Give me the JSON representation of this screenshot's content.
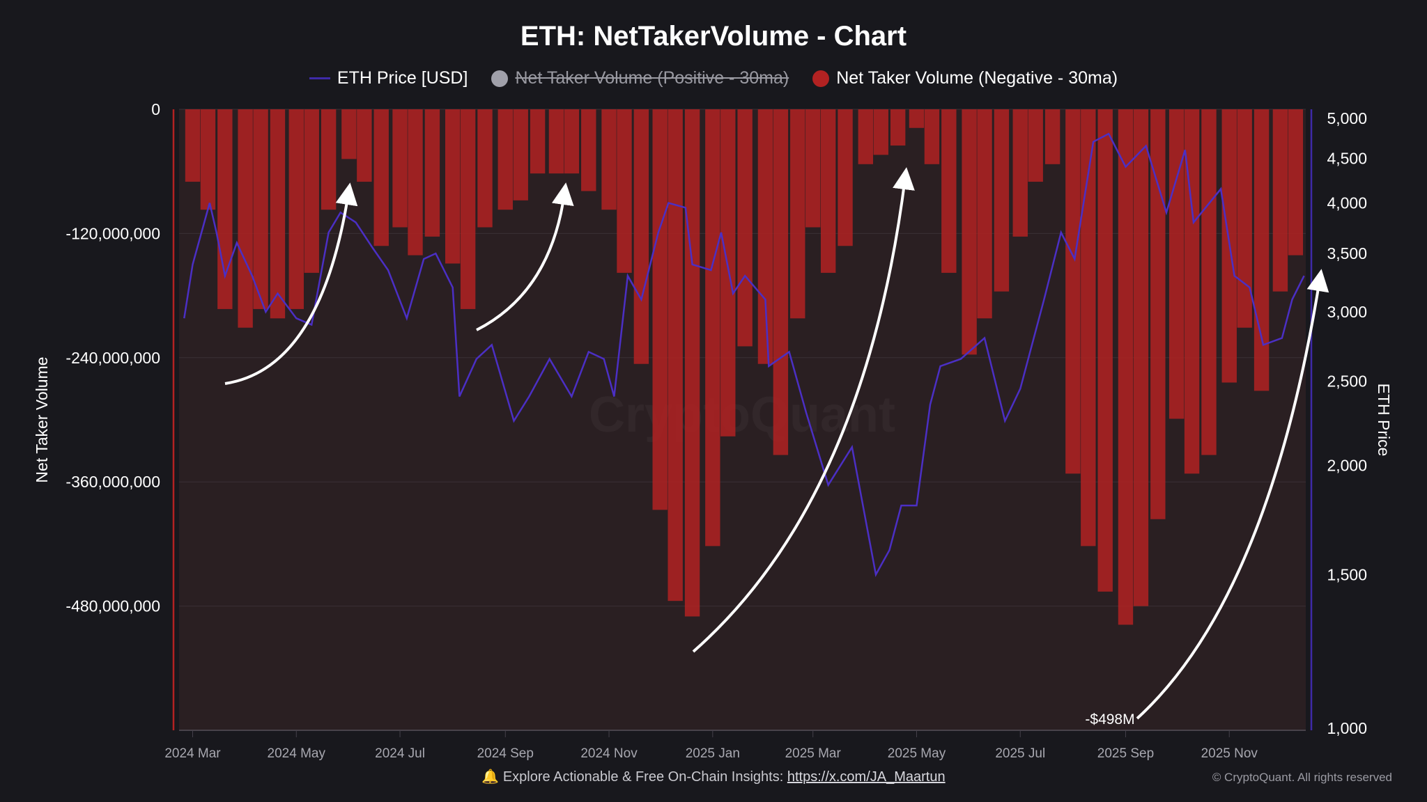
{
  "title": "ETH: NetTakerVolume - Chart",
  "legend": [
    {
      "label": "ETH Price [USD]",
      "color": "#3e2aa8",
      "marker": "line",
      "enabled": true
    },
    {
      "label": "Net Taker Volume (Positive - 30ma)",
      "color": "#a0a0aa",
      "marker": "dot",
      "enabled": false
    },
    {
      "label": "Net Taker Volume (Negative - 30ma)",
      "color": "#b22222",
      "marker": "dot",
      "enabled": true
    }
  ],
  "footer": {
    "bell_icon": "bell-icon",
    "text": "Explore Actionable & Free On-Chain Insights: ",
    "link": "https://x.com/JA_Maartun"
  },
  "copyright": "© CryptoQuant. All rights reserved",
  "watermark": "CryptoQuant",
  "chart_data": {
    "type": "bar+line",
    "title": "ETH: NetTakerVolume - Chart",
    "ylabel_left": "Net Taker Volume",
    "ylabel_right": "ETH Price",
    "ylim_left": [
      -600000000,
      0
    ],
    "ylim_right": [
      1000,
      5000
    ],
    "right_scale": "log",
    "grid": true,
    "legend_placement": "top",
    "left_ticks": [
      "0",
      "-120,000,000",
      "-240,000,000",
      "-360,000,000",
      "-480,000,000"
    ],
    "left_tick_values": [
      0,
      -120000000,
      -240000000,
      -360000000,
      -480000000
    ],
    "right_ticks": [
      "5,000",
      "4,500",
      "4,000",
      "3,500",
      "3,000",
      "2,500",
      "2,000",
      "1,500",
      "1,000"
    ],
    "right_tick_values": [
      5000,
      4500,
      4000,
      3500,
      3000,
      2500,
      2000,
      1500,
      1000
    ],
    "x_ticks": [
      "2024 Mar",
      "2024 May",
      "2024 Jul",
      "2024 Sep",
      "2024 Nov",
      "2025 Jan",
      "2025 Mar",
      "2025 May",
      "2025 Jul",
      "2025 Sep",
      "2025 Nov"
    ],
    "x_tick_dates": [
      "2024-03-01",
      "2024-05-01",
      "2024-07-01",
      "2024-09-01",
      "2024-11-01",
      "2025-01-01",
      "2025-03-01",
      "2025-05-01",
      "2025-07-01",
      "2025-09-01",
      "2025-11-01"
    ],
    "annotation": {
      "label": "-$498M",
      "date": "2025-09-03",
      "value": -498000000
    },
    "negative_volume_millions": {
      "dates": [
        "2024-03-01",
        "2024-03-10",
        "2024-03-20",
        "2024-04-01",
        "2024-04-10",
        "2024-04-20",
        "2024-05-01",
        "2024-05-10",
        "2024-05-20",
        "2024-06-01",
        "2024-06-10",
        "2024-06-20",
        "2024-07-01",
        "2024-07-10",
        "2024-07-20",
        "2024-08-01",
        "2024-08-10",
        "2024-08-20",
        "2024-09-01",
        "2024-09-10",
        "2024-09-20",
        "2024-10-01",
        "2024-10-10",
        "2024-10-20",
        "2024-11-01",
        "2024-11-10",
        "2024-11-20",
        "2024-12-01",
        "2024-12-10",
        "2024-12-20",
        "2025-01-01",
        "2025-01-10",
        "2025-01-20",
        "2025-02-01",
        "2025-02-10",
        "2025-02-20",
        "2025-03-01",
        "2025-03-10",
        "2025-03-20",
        "2025-04-01",
        "2025-04-10",
        "2025-04-20",
        "2025-05-01",
        "2025-05-10",
        "2025-05-20",
        "2025-06-01",
        "2025-06-10",
        "2025-06-20",
        "2025-07-01",
        "2025-07-10",
        "2025-07-20",
        "2025-08-01",
        "2025-08-10",
        "2025-08-20",
        "2025-09-01",
        "2025-09-10",
        "2025-09-20",
        "2025-10-01",
        "2025-10-10",
        "2025-10-20",
        "2025-11-01",
        "2025-11-10",
        "2025-11-20",
        "2025-12-01",
        "2025-12-10"
      ],
      "values": [
        -70,
        -97,
        -193,
        -211,
        -193,
        -202,
        -193,
        -158,
        -97,
        -48,
        -70,
        -132,
        -114,
        -141,
        -123,
        -149,
        -193,
        -114,
        -97,
        -88,
        -62,
        -62,
        -62,
        -79,
        -97,
        -158,
        -246,
        -387,
        -475,
        -490,
        -422,
        -316,
        -229,
        -246,
        -334,
        -202,
        -114,
        -158,
        -132,
        -53,
        -44,
        -35,
        -18,
        -53,
        -158,
        -237,
        -202,
        -176,
        -123,
        -70,
        -53,
        -352,
        -422,
        -466,
        -498,
        -480,
        -396,
        -299,
        -352,
        -334,
        -264,
        -211,
        -272,
        -176,
        -141
      ]
    },
    "eth_price_usd": {
      "dates": [
        "2024-02-25",
        "2024-03-01",
        "2024-03-11",
        "2024-03-15",
        "2024-03-20",
        "2024-03-27",
        "2024-04-05",
        "2024-04-13",
        "2024-04-20",
        "2024-05-01",
        "2024-05-10",
        "2024-05-20",
        "2024-05-27",
        "2024-06-05",
        "2024-06-15",
        "2024-06-24",
        "2024-07-05",
        "2024-07-15",
        "2024-07-22",
        "2024-08-01",
        "2024-08-05",
        "2024-08-15",
        "2024-08-24",
        "2024-09-06",
        "2024-09-15",
        "2024-09-27",
        "2024-10-10",
        "2024-10-20",
        "2024-10-29",
        "2024-11-04",
        "2024-11-12",
        "2024-11-20",
        "2024-11-30",
        "2024-12-06",
        "2024-12-16",
        "2024-12-20",
        "2024-12-31",
        "2025-01-06",
        "2025-01-13",
        "2025-01-20",
        "2025-02-01",
        "2025-02-03",
        "2025-02-15",
        "2025-02-25",
        "2025-03-10",
        "2025-03-24",
        "2025-04-07",
        "2025-04-15",
        "2025-04-22",
        "2025-05-01",
        "2025-05-09",
        "2025-05-15",
        "2025-05-27",
        "2025-06-10",
        "2025-06-22",
        "2025-07-01",
        "2025-07-15",
        "2025-07-25",
        "2025-08-02",
        "2025-08-13",
        "2025-08-22",
        "2025-09-01",
        "2025-09-13",
        "2025-09-25",
        "2025-10-06",
        "2025-10-11",
        "2025-10-27",
        "2025-11-04",
        "2025-11-13",
        "2025-11-21",
        "2025-12-02",
        "2025-12-08",
        "2025-12-15"
      ],
      "values": [
        2950,
        3400,
        4000,
        3700,
        3300,
        3600,
        3300,
        3000,
        3150,
        2950,
        2900,
        3700,
        3900,
        3800,
        3550,
        3350,
        2950,
        3450,
        3500,
        3200,
        2400,
        2650,
        2750,
        2250,
        2400,
        2650,
        2400,
        2700,
        2650,
        2400,
        3300,
        3100,
        3700,
        4000,
        3950,
        3400,
        3350,
        3700,
        3150,
        3300,
        3100,
        2600,
        2700,
        2300,
        1900,
        2100,
        1500,
        1600,
        1800,
        1800,
        2350,
        2600,
        2650,
        2800,
        2250,
        2450,
        3100,
        3700,
        3450,
        4700,
        4800,
        4400,
        4650,
        3900,
        4600,
        3800,
        4150,
        3300,
        3200,
        2750,
        2800,
        3100,
        3300
      ]
    }
  }
}
